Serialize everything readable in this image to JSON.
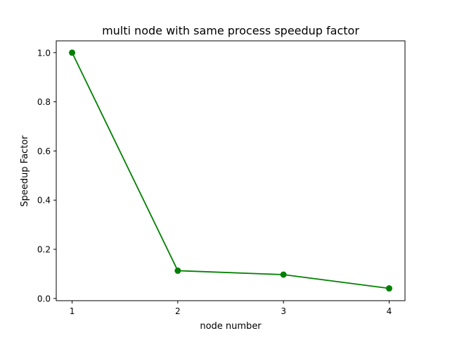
{
  "chart_data": {
    "type": "line",
    "title": "multi node with same process speedup factor",
    "xlabel": "node number",
    "ylabel": "Speedup Factor",
    "x": [
      1,
      2,
      3,
      4
    ],
    "series": [
      {
        "values": [
          1.0,
          0.113,
          0.097,
          0.041
        ],
        "color": "#008000",
        "marker": "circle"
      }
    ],
    "xticks": [
      1,
      2,
      3,
      4
    ],
    "xtick_labels": [
      "1",
      "2",
      "3",
      "4"
    ],
    "yticks": [
      0.0,
      0.2,
      0.4,
      0.6,
      0.8,
      1.0
    ],
    "ytick_labels": [
      "0.0",
      "0.2",
      "0.4",
      "0.6",
      "0.8",
      "1.0"
    ],
    "xlim": [
      0.85,
      4.15
    ],
    "ylim": [
      -0.009,
      1.048
    ],
    "grid": false,
    "legend": "none"
  }
}
